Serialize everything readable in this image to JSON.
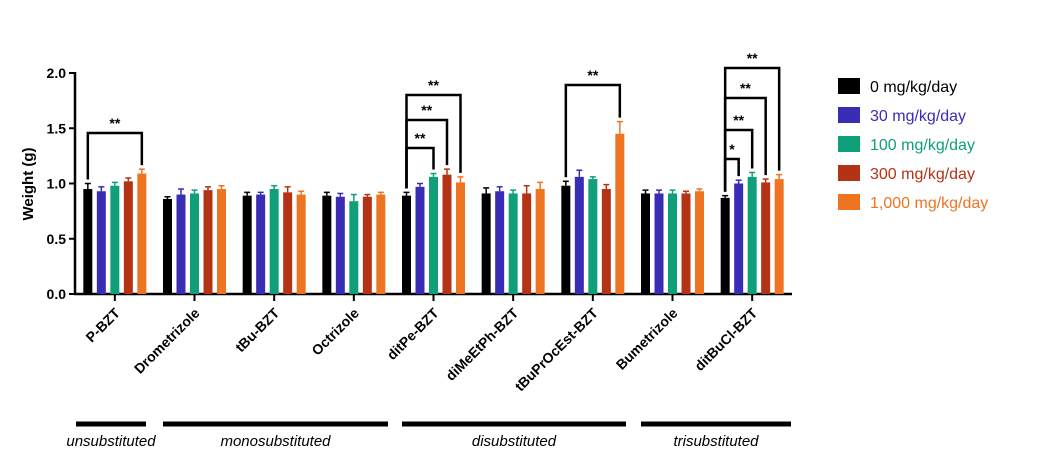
{
  "chart_data": {
    "type": "bar",
    "title": "",
    "xlabel": "",
    "ylabel": "Weight (g)",
    "ylim": [
      0,
      2.0
    ],
    "yticks": [
      "0.0",
      "0.5",
      "1.0",
      "1.5",
      "2.0"
    ],
    "grid": false,
    "legend_position": "right",
    "categories": [
      "P-BZT",
      "Drometrizole",
      "tBu-BZT",
      "Octrizole",
      "ditPe-BZT",
      "diMeEtPh-BZT",
      "tBuPrOcEst-BZT",
      "Bumetrizole",
      "ditBuCl-BZT"
    ],
    "series": [
      {
        "name": "0 mg/kg/day",
        "color": "#000000",
        "values": [
          0.95,
          0.86,
          0.89,
          0.89,
          0.89,
          0.91,
          0.98,
          0.91,
          0.87
        ],
        "errors": [
          0.05,
          0.02,
          0.03,
          0.03,
          0.03,
          0.05,
          0.04,
          0.03,
          0.02
        ]
      },
      {
        "name": "30 mg/kg/day",
        "color": "#3a2db5",
        "values": [
          0.93,
          0.9,
          0.9,
          0.88,
          0.97,
          0.93,
          1.06,
          0.91,
          1.0
        ],
        "errors": [
          0.04,
          0.05,
          0.02,
          0.03,
          0.03,
          0.04,
          0.06,
          0.03,
          0.03
        ]
      },
      {
        "name": "100 mg/kg/day",
        "color": "#0fa07a",
        "values": [
          0.98,
          0.91,
          0.95,
          0.84,
          1.06,
          0.91,
          1.04,
          0.91,
          1.06
        ],
        "errors": [
          0.03,
          0.03,
          0.03,
          0.06,
          0.03,
          0.03,
          0.02,
          0.03,
          0.04
        ]
      },
      {
        "name": "300 mg/kg/day",
        "color": "#b53315",
        "values": [
          1.02,
          0.94,
          0.92,
          0.88,
          1.08,
          0.91,
          0.95,
          0.91,
          1.01
        ],
        "errors": [
          0.03,
          0.03,
          0.05,
          0.02,
          0.05,
          0.07,
          0.04,
          0.02,
          0.03
        ]
      },
      {
        "name": "1,000 mg/kg/day",
        "color": "#ee7421",
        "values": [
          1.09,
          0.95,
          0.9,
          0.9,
          1.01,
          0.95,
          1.45,
          0.93,
          1.04
        ],
        "errors": [
          0.04,
          0.03,
          0.03,
          0.02,
          0.05,
          0.06,
          0.11,
          0.02,
          0.04
        ]
      }
    ],
    "significance": [
      {
        "category": 0,
        "from": 0,
        "to": 4,
        "label": "**"
      },
      {
        "category": 4,
        "from": 0,
        "to": 2,
        "label": "**"
      },
      {
        "category": 4,
        "from": 0,
        "to": 3,
        "label": "**"
      },
      {
        "category": 4,
        "from": 0,
        "to": 4,
        "label": "**"
      },
      {
        "category": 6,
        "from": 0,
        "to": 4,
        "label": "**"
      },
      {
        "category": 8,
        "from": 0,
        "to": 1,
        "label": "*"
      },
      {
        "category": 8,
        "from": 0,
        "to": 2,
        "label": "**"
      },
      {
        "category": 8,
        "from": 0,
        "to": 3,
        "label": "**"
      },
      {
        "category": 8,
        "from": 0,
        "to": 4,
        "label": "**"
      }
    ],
    "groups": [
      {
        "label": "unsubstituted",
        "from": 0,
        "to": 0
      },
      {
        "label": "monosubstituted",
        "from": 1,
        "to": 3
      },
      {
        "label": "disubstituted",
        "from": 4,
        "to": 6
      },
      {
        "label": "trisubstituted",
        "from": 7,
        "to": 8
      }
    ]
  }
}
